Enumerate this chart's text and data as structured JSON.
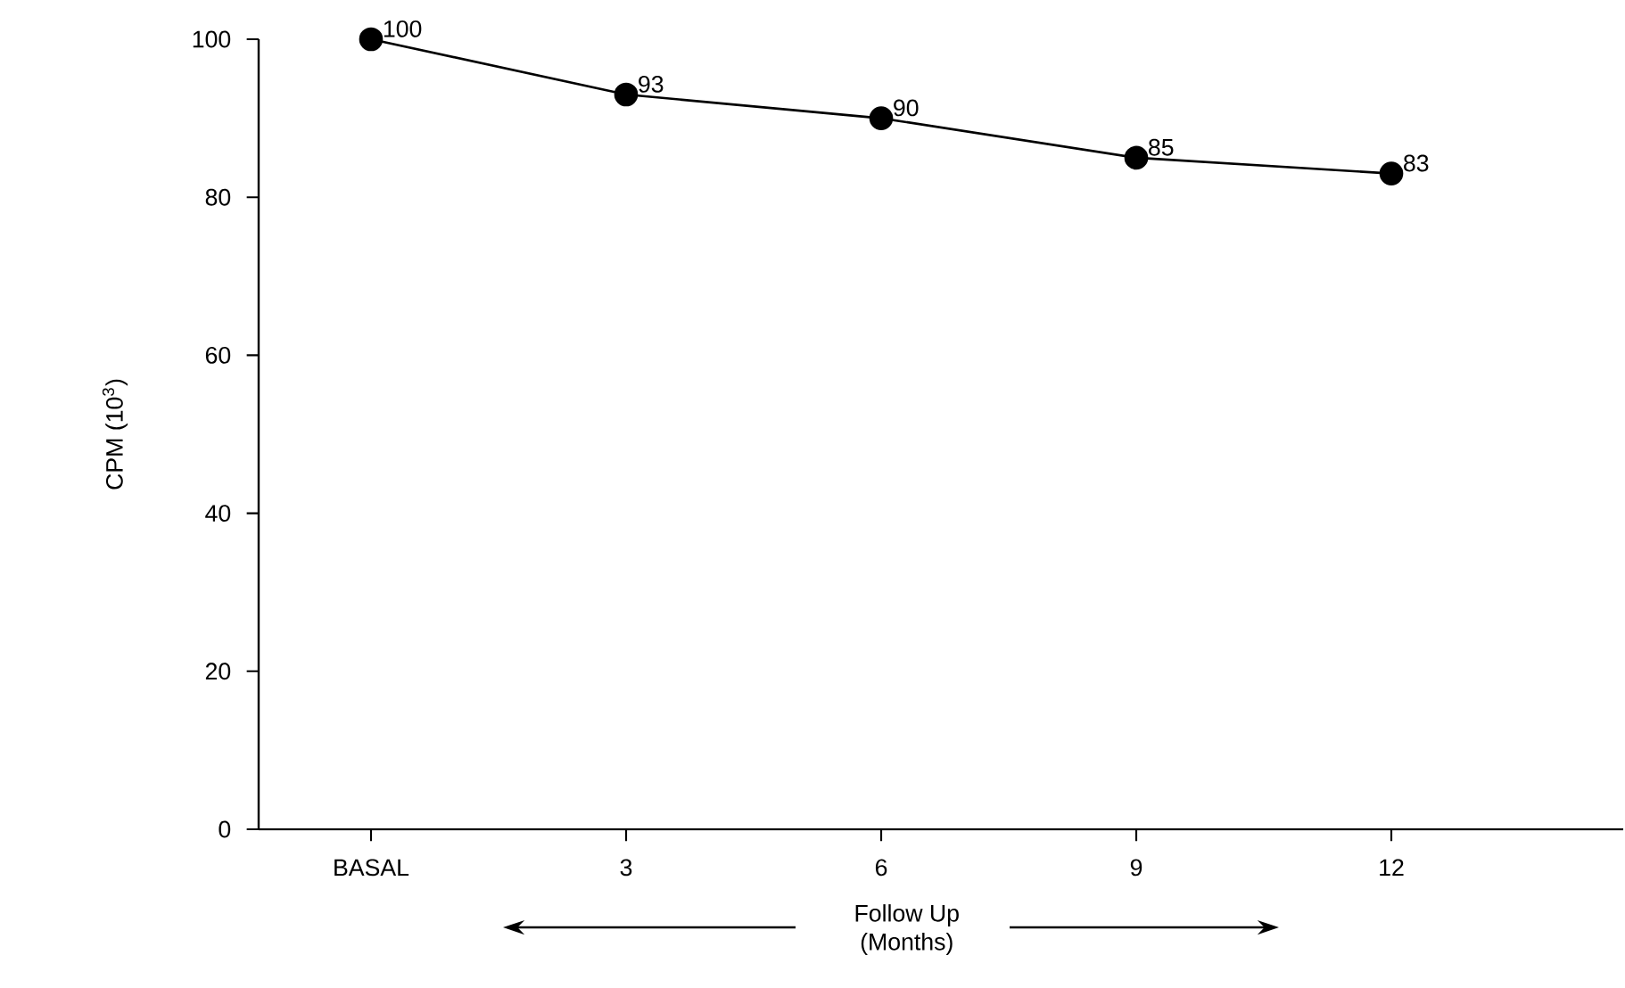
{
  "chart_data": {
    "type": "line",
    "categories": [
      "BASAL",
      "3",
      "6",
      "9",
      "12"
    ],
    "values": [
      100,
      93,
      90,
      85,
      83
    ],
    "color": "#000000",
    "xlabel": "Follow Up (Months)",
    "ylabel": "CPM (10$^{3}$)",
    "ylim": [
      0,
      100
    ],
    "yticks": [
      0,
      20,
      40,
      60,
      80,
      100
    ],
    "data_labels": true,
    "marker": "circle",
    "line_style": "solid"
  }
}
